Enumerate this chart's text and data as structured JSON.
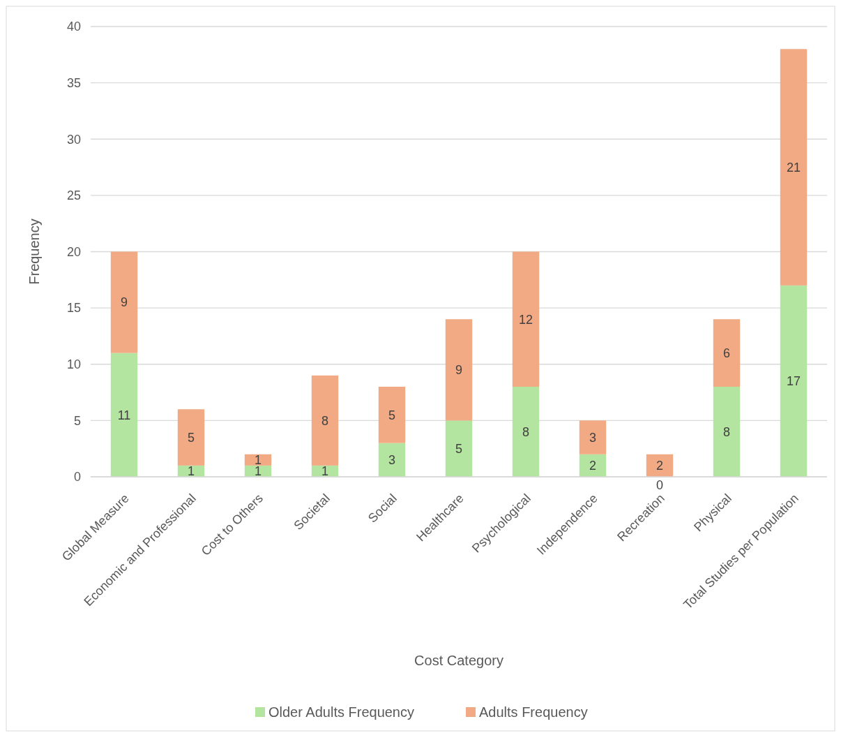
{
  "chart_data": {
    "type": "bar",
    "stacked": true,
    "xlabel": "Cost Category",
    "ylabel": "Frequency",
    "categories": [
      "Global Measure",
      "Economic and Professional",
      "Cost to Others",
      "Societal",
      "Social",
      "Healthcare",
      "Psychological",
      "Independence",
      "Recreation",
      "Physical",
      "Total Studies per Population"
    ],
    "series": [
      {
        "name": "Older Adults Frequency",
        "color": "#b3e5a1",
        "values": [
          11,
          1,
          1,
          1,
          3,
          5,
          8,
          2,
          0,
          8,
          17
        ]
      },
      {
        "name": "Adults Frequency",
        "color": "#f2aa84",
        "values": [
          9,
          5,
          1,
          8,
          5,
          9,
          12,
          3,
          2,
          6,
          21
        ]
      }
    ],
    "ylim": [
      0,
      40
    ],
    "yticks": [
      0,
      5,
      10,
      15,
      20,
      25,
      30,
      35,
      40
    ],
    "grid": "y",
    "legend": "bottom",
    "data_labels": true
  }
}
